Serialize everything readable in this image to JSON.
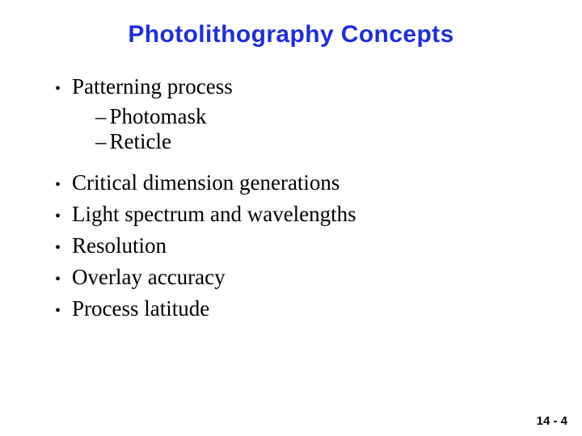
{
  "title": {
    "text": "Photolithography Concepts",
    "color": "#1e2fd6",
    "fontsize": 30
  },
  "body": {
    "color": "#000000",
    "fontsize": 27,
    "bullet_fontsize": 20
  },
  "first_bullet": {
    "text": "Patterning process",
    "sub_items": [
      "Photomask",
      "Reticle"
    ]
  },
  "main_bullets": [
    "Critical dimension generations",
    "Light spectrum and wavelengths",
    "Resolution",
    "Overlay accuracy",
    "Process latitude"
  ],
  "page_number": {
    "text": "14 - 4",
    "color": "#000000",
    "fontsize": 15
  }
}
